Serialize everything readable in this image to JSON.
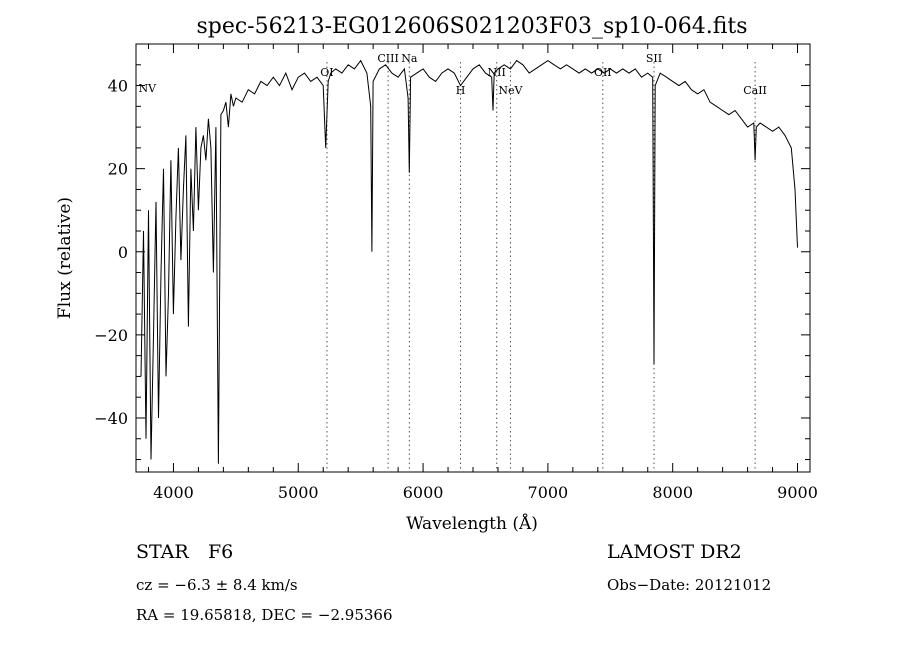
{
  "chart_data": {
    "type": "line",
    "title": "spec-56213-EG012606S021203F03_sp10-064.fits",
    "xlabel": "Wavelength (Å)",
    "ylabel": "Flux (relative)",
    "xlim": [
      3700,
      9100
    ],
    "ylim": [
      -53,
      50
    ],
    "x_ticks": [
      4000,
      5000,
      6000,
      7000,
      8000,
      9000
    ],
    "y_ticks": [
      -40,
      -20,
      0,
      20,
      40
    ],
    "grid": false,
    "line_color": "#000000",
    "spectral_lines": [
      {
        "label": "NV",
        "wavelength": 3720
      },
      {
        "label": "OI",
        "wavelength": 5230
      },
      {
        "label": "CIII",
        "wavelength": 5720
      },
      {
        "label": "Na",
        "wavelength": 5890
      },
      {
        "label": "H",
        "wavelength": 6300
      },
      {
        "label": "NII",
        "wavelength": 6590
      },
      {
        "label": "NeV",
        "wavelength": 6700
      },
      {
        "label": "OII",
        "wavelength": 7440
      },
      {
        "label": "SII",
        "wavelength": 7850
      },
      {
        "label": "CaII",
        "wavelength": 8660
      }
    ],
    "series": [
      {
        "x": [
          3740,
          3760,
          3780,
          3800,
          3820,
          3840,
          3860,
          3880,
          3900,
          3920,
          3940,
          3960,
          3980,
          4000,
          4020,
          4040,
          4060,
          4080,
          4100,
          4120,
          4140,
          4160,
          4180,
          4200,
          4220,
          4240,
          4260,
          4280,
          4300,
          4320,
          4340,
          4360,
          4380,
          4400,
          4420,
          4440,
          4460,
          4480,
          4500,
          4550,
          4600,
          4650,
          4700,
          4750,
          4800,
          4850,
          4900,
          4950,
          5000,
          5050,
          5100,
          5150,
          5200,
          5220,
          5240,
          5260,
          5300,
          5350,
          5400,
          5450,
          5500,
          5550,
          5580,
          5590,
          5600,
          5650,
          5700,
          5750,
          5800,
          5850,
          5880,
          5890,
          5900,
          5950,
          6000,
          6050,
          6100,
          6150,
          6200,
          6250,
          6300,
          6350,
          6400,
          6450,
          6500,
          6550,
          6560,
          6570,
          6600,
          6650,
          6700,
          6750,
          6800,
          6850,
          6900,
          6950,
          7000,
          7050,
          7100,
          7150,
          7200,
          7250,
          7300,
          7350,
          7400,
          7450,
          7500,
          7550,
          7600,
          7650,
          7700,
          7750,
          7800,
          7840,
          7850,
          7860,
          7900,
          7950,
          8000,
          8050,
          8100,
          8150,
          8200,
          8250,
          8300,
          8350,
          8400,
          8450,
          8500,
          8550,
          8600,
          8650,
          8660,
          8670,
          8700,
          8750,
          8800,
          8850,
          8900,
          8950,
          8980,
          9000
        ],
        "y": [
          -30,
          5,
          -45,
          10,
          -50,
          -20,
          12,
          -40,
          -5,
          20,
          -30,
          -10,
          22,
          -15,
          8,
          25,
          -2,
          15,
          28,
          -18,
          20,
          5,
          30,
          10,
          25,
          28,
          22,
          32,
          25,
          -5,
          30,
          -51,
          33,
          34,
          36,
          30,
          38,
          35,
          37,
          36,
          39,
          38,
          41,
          40,
          42,
          40,
          43,
          39,
          42,
          43,
          41,
          42,
          40,
          25,
          41,
          43,
          44,
          43,
          45,
          44,
          46,
          43,
          35,
          0,
          41,
          44,
          45,
          43,
          42,
          44,
          37,
          19,
          42,
          43,
          44,
          42,
          41,
          43,
          44,
          43,
          40,
          42,
          44,
          45,
          43,
          42,
          34,
          43,
          44,
          45,
          44,
          46,
          45,
          43,
          44,
          45,
          46,
          45,
          44,
          45,
          44,
          43,
          44,
          43,
          44,
          43,
          44,
          43,
          44,
          43,
          44,
          42,
          43,
          42,
          -27,
          40,
          43,
          42,
          41,
          40,
          41,
          39,
          38,
          39,
          36,
          35,
          34,
          33,
          34,
          32,
          30,
          31,
          22,
          30,
          31,
          30,
          29,
          30,
          28,
          25,
          15,
          1
        ]
      }
    ]
  },
  "info": {
    "object_class": "STAR",
    "subclass": "F6",
    "survey": "LAMOST DR2",
    "redshift": "cz = −6.3 ± 8.4 km/s",
    "obs_date": "Obs−Date: 20121012",
    "coords": "RA =  19.65818, DEC =  −2.95366"
  }
}
